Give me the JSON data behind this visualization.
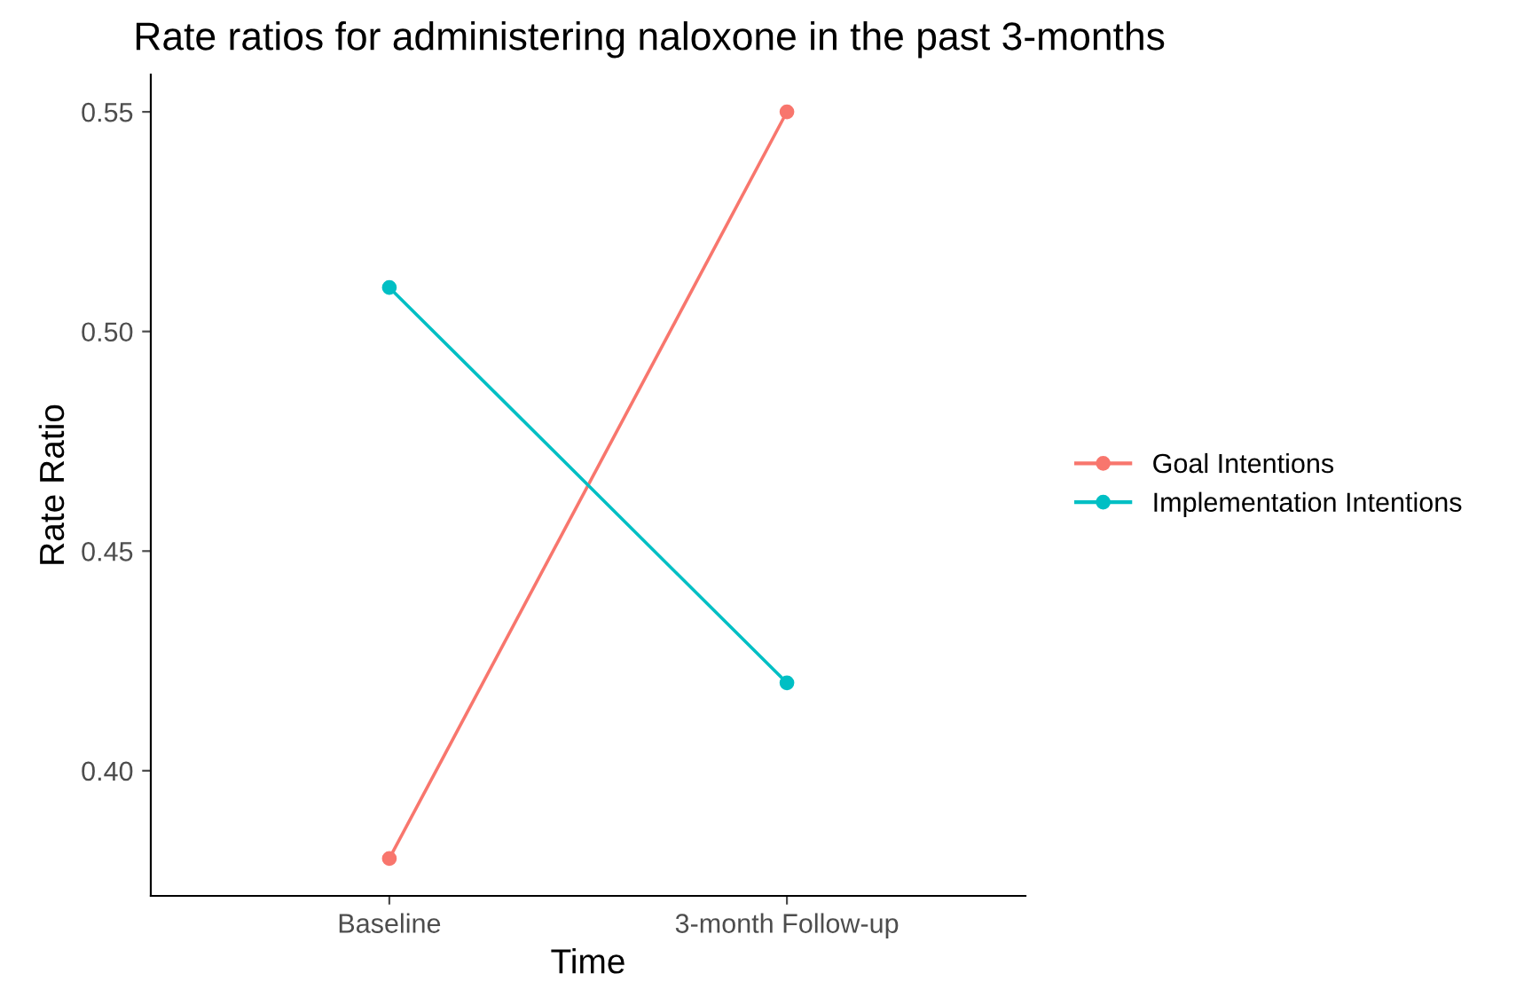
{
  "chart_data": {
    "type": "line",
    "title": "Rate ratios for administering naloxone in the past 3-months",
    "xlabel": "Time",
    "ylabel": "Rate Ratio",
    "categories": [
      "Baseline",
      "3-month Follow-up"
    ],
    "series": [
      {
        "name": "Goal Intentions",
        "color": "#f8766d",
        "values": [
          0.38,
          0.55
        ]
      },
      {
        "name": "Implementation Intentions",
        "color": "#00bfc4",
        "values": [
          0.51,
          0.42
        ]
      }
    ],
    "ylim": [
      0.3715,
      0.5585
    ],
    "yticks": [
      {
        "value": 0.4,
        "label": "0.40"
      },
      {
        "value": 0.45,
        "label": "0.45"
      },
      {
        "value": 0.5,
        "label": "0.50"
      },
      {
        "value": 0.55,
        "label": "0.55"
      }
    ],
    "grid": false,
    "legend": "right",
    "marker": "circle",
    "line_style": "solid"
  }
}
